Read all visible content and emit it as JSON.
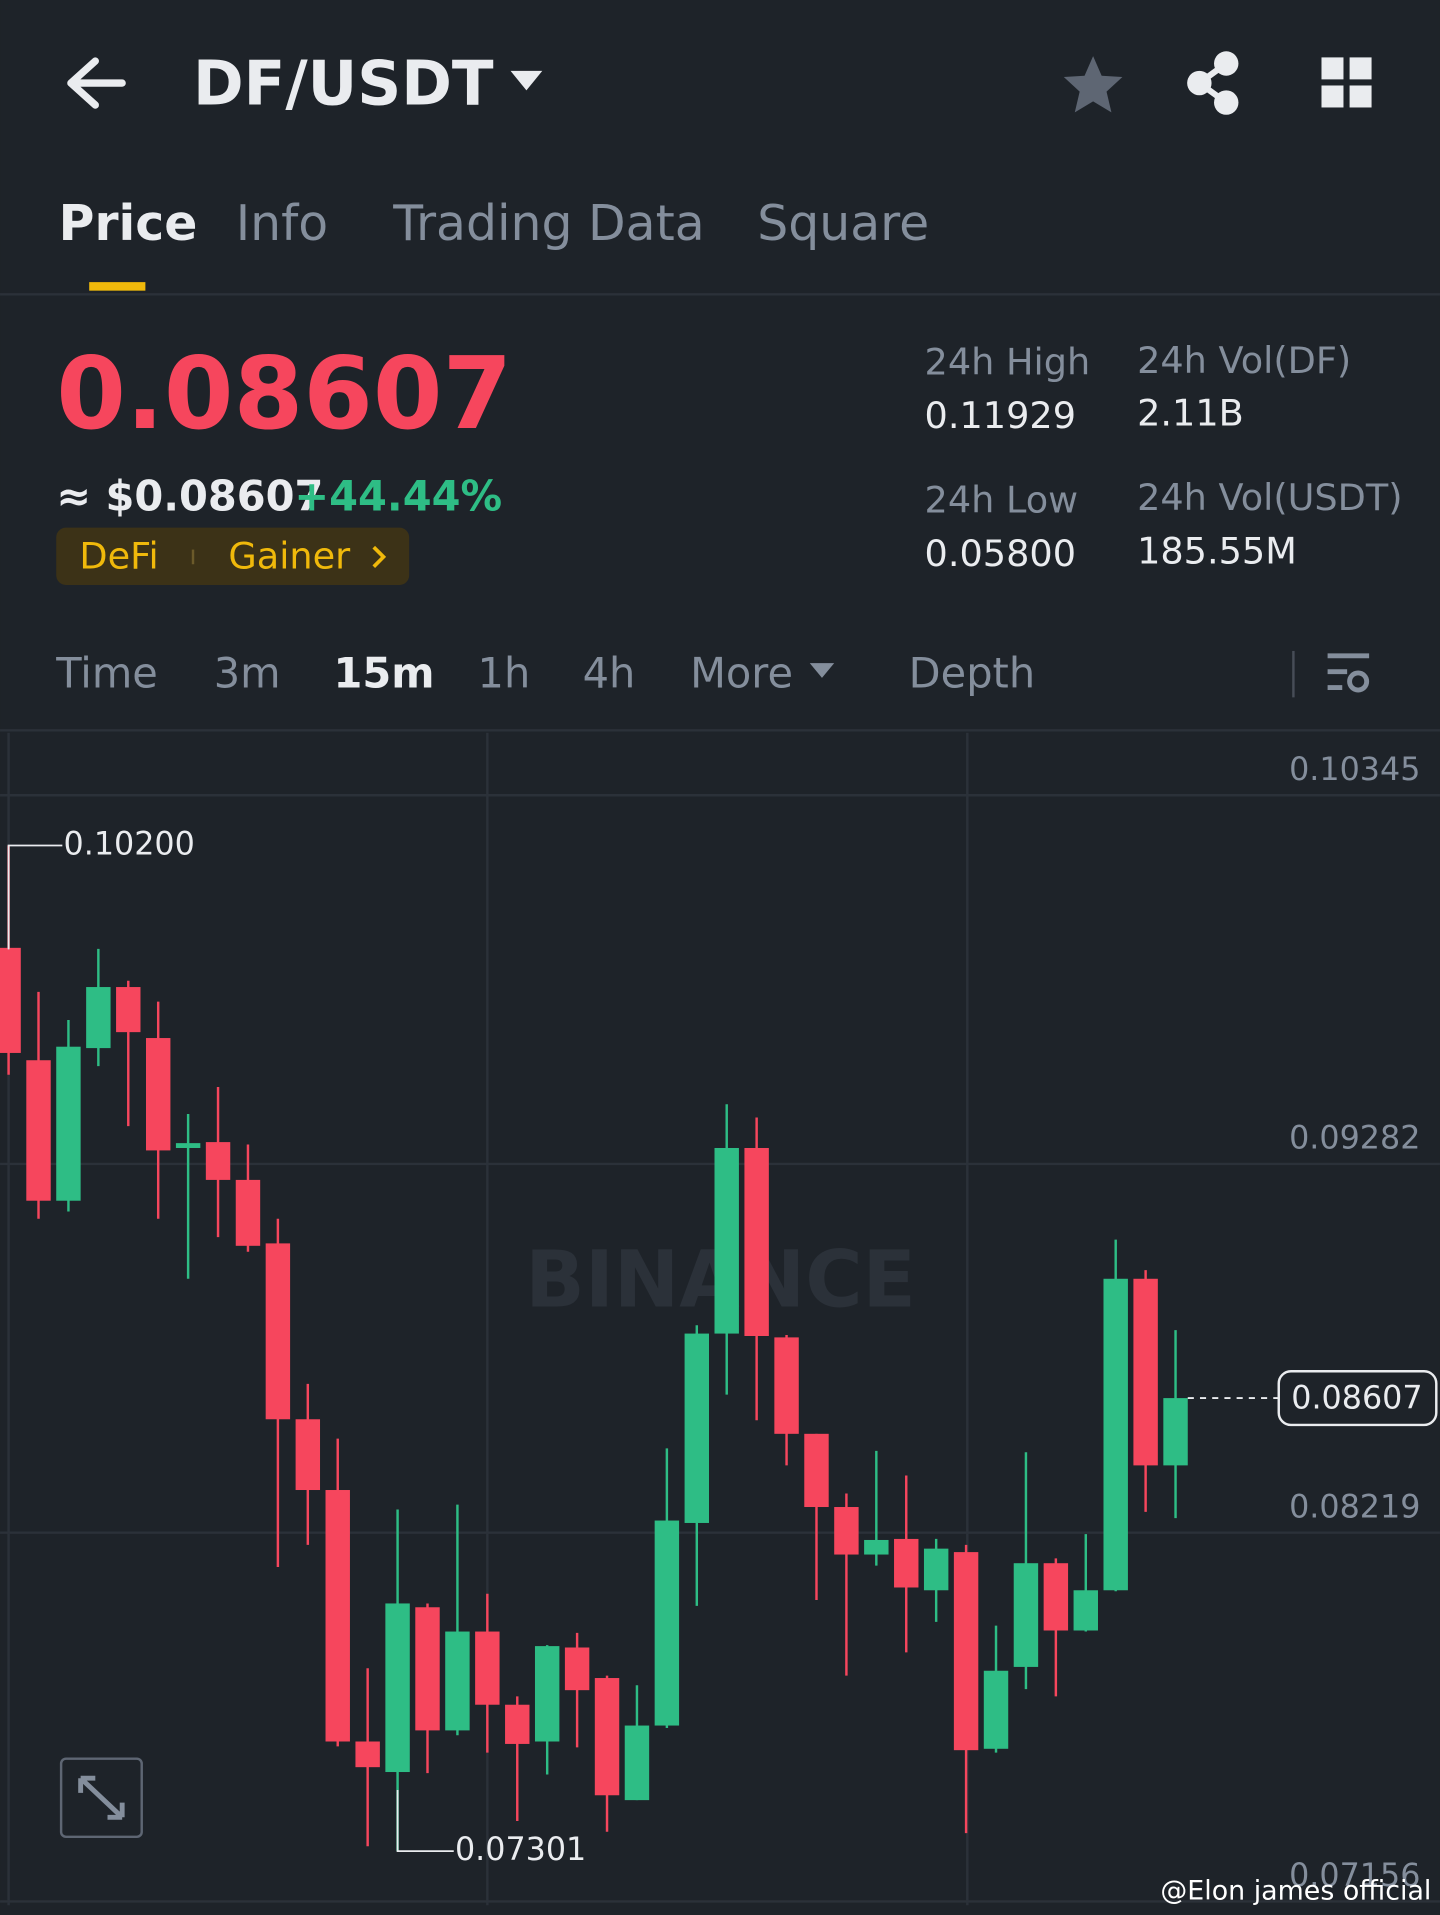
{
  "header": {
    "pair": "DF/USDT"
  },
  "tabs": [
    "Price",
    "Info",
    "Trading Data",
    "Square"
  ],
  "ticker": {
    "last_price": "0.08607",
    "usd_price": "≈ $0.08607",
    "change": "+44.44%",
    "tags": [
      "DeFi",
      "Gainer"
    ],
    "stats": [
      {
        "label": "24h High",
        "value": "0.11929"
      },
      {
        "label": "24h Vol(DF)",
        "value": "2.11B"
      },
      {
        "label": "24h Low",
        "value": "0.05800"
      },
      {
        "label": "24h Vol(USDT)",
        "value": "185.55M"
      }
    ]
  },
  "intervals": [
    "Time",
    "3m",
    "15m",
    "1h",
    "4h",
    "More",
    "Depth"
  ],
  "chart_data": {
    "type": "candlestick",
    "watermark": "BINANCE",
    "up_color": "#2ebd85",
    "down_color": "#f6465d",
    "open": [
      0.09905,
      0.09581,
      0.09176,
      0.09616,
      0.09792,
      0.09645,
      0.09328,
      0.09345,
      0.09236,
      0.09053,
      0.08546,
      0.08342,
      0.07617,
      0.07529,
      0.08004,
      0.07649,
      0.07934,
      0.07723,
      0.07617,
      0.07888,
      0.078,
      0.07448,
      0.07663,
      0.08247,
      0.08793,
      0.09328,
      0.08782,
      0.08504,
      0.08293,
      0.08156,
      0.08201,
      0.08053,
      0.08163,
      0.07596,
      0.07832,
      0.08131,
      0.07937,
      0.08053,
      0.08951,
      0.08413
    ],
    "high": [
      0.102,
      0.09778,
      0.09697,
      0.09902,
      0.0981,
      0.0975,
      0.09426,
      0.09504,
      0.09338,
      0.09124,
      0.08648,
      0.0849,
      0.07828,
      0.08286,
      0.08015,
      0.083,
      0.08043,
      0.07747,
      0.07895,
      0.0793,
      0.07807,
      0.07779,
      0.08462,
      0.08817,
      0.09454,
      0.09416,
      0.08789,
      0.08504,
      0.08332,
      0.08455,
      0.08384,
      0.08201,
      0.08184,
      0.07951,
      0.08451,
      0.08145,
      0.08215,
      0.09064,
      0.08976,
      0.08803
    ],
    "low": [
      0.09539,
      0.09124,
      0.09145,
      0.09564,
      0.09391,
      0.09124,
      0.08951,
      0.09071,
      0.09029,
      0.0812,
      0.08184,
      0.07603,
      0.07315,
      0.07301,
      0.07526,
      0.07635,
      0.07585,
      0.07388,
      0.07522,
      0.076,
      0.07357,
      0.07448,
      0.07656,
      0.08008,
      0.08617,
      0.08543,
      0.08413,
      0.08025,
      0.07807,
      0.08124,
      0.07874,
      0.07962,
      0.07353,
      0.07585,
      0.07768,
      0.07747,
      0.07934,
      0.0805,
      0.08279,
      0.08261
    ],
    "close": [
      0.09602,
      0.09176,
      0.0962,
      0.09792,
      0.09662,
      0.09321,
      0.09342,
      0.09236,
      0.09046,
      0.08546,
      0.08342,
      0.07617,
      0.07543,
      0.08015,
      0.07649,
      0.07934,
      0.07723,
      0.0761,
      0.07892,
      0.07765,
      0.07462,
      0.07663,
      0.08254,
      0.08793,
      0.09328,
      0.08786,
      0.08504,
      0.08293,
      0.08156,
      0.08198,
      0.08061,
      0.08173,
      0.07592,
      0.07821,
      0.08131,
      0.07937,
      0.08053,
      0.08951,
      0.08413,
      0.08607
    ],
    "ylim": [
      0.07145,
      0.10525
    ],
    "yticks": [
      0.10345,
      0.09282,
      0.08219,
      0.07156
    ],
    "grid": true,
    "annotations": {
      "high": "0.10200",
      "low": "0.07301",
      "last": "0.08607"
    }
  },
  "credit": "@Elon james official"
}
